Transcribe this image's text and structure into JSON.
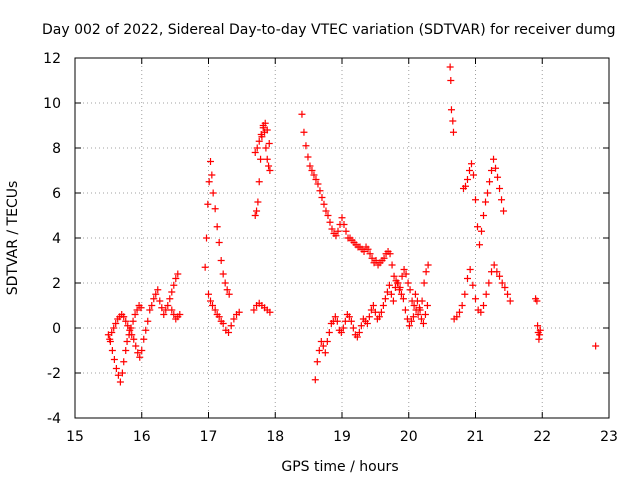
{
  "chart_data": {
    "type": "scatter",
    "title": "Day 002 of 2022, Sidereal Day-to-day VTEC variation (SDTVAR) for receiver dumg",
    "xlabel": "GPS time / hours",
    "ylabel": "SDTVAR / TECUs",
    "xlim": [
      15,
      23
    ],
    "ylim": [
      -4,
      12
    ],
    "xticks": [
      15,
      16,
      17,
      18,
      19,
      20,
      21,
      22,
      23
    ],
    "yticks": [
      -4,
      -2,
      0,
      2,
      4,
      6,
      8,
      10,
      12
    ],
    "grid": true,
    "marker": "plus",
    "series_color": "#ff0000",
    "series": [
      {
        "name": "SDTVAR",
        "x": [
          15.5,
          15.53,
          15.56,
          15.59,
          15.62,
          15.65,
          15.68,
          15.71,
          15.73,
          15.76,
          15.78,
          15.81,
          15.84,
          15.87,
          15.9,
          15.93,
          15.96,
          15.99,
          15.52,
          15.55,
          15.58,
          15.61,
          15.64,
          15.67,
          15.7,
          15.73,
          15.76,
          15.79,
          15.82,
          15.85,
          15.88,
          15.91,
          15.94,
          15.97,
          16.0,
          16.03,
          16.06,
          16.09,
          16.12,
          16.15,
          16.18,
          16.21,
          16.24,
          16.27,
          16.3,
          16.33,
          16.36,
          16.39,
          16.42,
          16.45,
          16.48,
          16.51,
          16.54,
          16.45,
          16.48,
          16.51,
          16.54,
          16.57,
          16.95,
          16.97,
          16.99,
          17.01,
          17.03,
          17.05,
          17.07,
          17.1,
          17.13,
          17.16,
          17.19,
          17.22,
          17.25,
          17.28,
          17.31,
          17.0,
          17.03,
          17.06,
          17.1,
          17.13,
          17.16,
          17.19,
          17.22,
          17.26,
          17.3,
          17.34,
          17.38,
          17.42,
          17.46,
          17.7,
          17.72,
          17.74,
          17.76,
          17.78,
          17.8,
          17.82,
          17.84,
          17.86,
          17.88,
          17.9,
          17.92,
          17.7,
          17.73,
          17.76,
          17.79,
          17.82,
          17.85,
          17.88,
          17.91,
          17.68,
          17.72,
          17.76,
          17.8,
          17.84,
          17.88,
          17.92,
          18.4,
          18.43,
          18.46,
          18.49,
          18.52,
          18.55,
          18.58,
          18.61,
          18.64,
          18.67,
          18.7,
          18.73,
          18.76,
          18.79,
          18.82,
          18.85,
          18.88,
          18.91,
          18.94,
          18.97,
          19.0,
          19.03,
          19.06,
          19.09,
          19.12,
          19.15,
          19.18,
          19.21,
          19.24,
          19.27,
          19.3,
          19.33,
          19.36,
          19.39,
          19.42,
          19.45,
          19.48,
          19.51,
          19.54,
          19.57,
          19.6,
          19.63,
          19.66,
          19.69,
          19.72,
          19.75,
          19.78,
          19.81,
          19.84,
          19.87,
          19.9,
          19.93,
          19.96,
          19.99,
          20.02,
          20.05,
          20.08,
          20.11,
          20.14,
          20.17,
          20.2,
          20.23,
          20.26,
          20.29,
          18.6,
          18.63,
          18.66,
          18.69,
          18.72,
          18.75,
          18.78,
          18.81,
          18.84,
          18.87,
          18.9,
          18.93,
          18.96,
          18.99,
          19.02,
          19.05,
          19.08,
          19.11,
          19.14,
          19.17,
          19.2,
          19.23,
          19.26,
          19.29,
          19.32,
          19.35,
          19.38,
          19.41,
          19.44,
          19.47,
          19.5,
          19.53,
          19.56,
          19.59,
          19.62,
          19.65,
          19.68,
          19.71,
          19.74,
          19.77,
          19.8,
          19.83,
          19.86,
          19.89,
          19.92,
          19.95,
          19.98,
          20.01,
          20.04,
          20.07,
          20.1,
          20.13,
          20.16,
          20.19,
          20.22,
          20.25,
          20.28,
          20.62,
          20.63,
          20.64,
          20.66,
          20.67,
          20.68,
          20.72,
          20.76,
          20.8,
          20.84,
          20.88,
          20.92,
          20.96,
          21.0,
          21.04,
          21.08,
          21.12,
          21.16,
          21.2,
          21.24,
          21.28,
          21.32,
          21.36,
          21.4,
          21.44,
          21.48,
          21.52,
          20.82,
          20.85,
          20.88,
          20.91,
          20.94,
          20.97,
          21.0,
          21.03,
          21.06,
          21.09,
          21.12,
          21.15,
          21.18,
          21.21,
          21.24,
          21.27,
          21.3,
          21.33,
          21.36,
          21.39,
          21.42,
          21.9,
          21.92,
          21.93,
          21.94,
          21.95,
          21.96,
          21.97,
          22.8
        ],
        "y": [
          -0.3,
          -0.6,
          -1.0,
          -1.4,
          -1.8,
          -2.1,
          -2.4,
          -2.0,
          -1.5,
          -1.0,
          -0.6,
          -0.3,
          0.0,
          0.3,
          0.6,
          0.8,
          1.0,
          0.9,
          -0.5,
          -0.2,
          0.0,
          0.2,
          0.4,
          0.5,
          0.6,
          0.5,
          0.3,
          0.1,
          -0.1,
          -0.3,
          -0.5,
          -0.8,
          -1.1,
          -1.3,
          -1.0,
          -0.5,
          -0.1,
          0.3,
          0.8,
          1.0,
          1.3,
          1.5,
          1.7,
          1.2,
          0.9,
          0.6,
          0.8,
          1.0,
          1.3,
          1.6,
          1.9,
          2.2,
          2.4,
          0.8,
          0.6,
          0.4,
          0.5,
          0.6,
          2.7,
          4.0,
          5.5,
          6.5,
          7.4,
          6.8,
          6.0,
          5.3,
          4.5,
          3.8,
          3.0,
          2.4,
          2.0,
          1.7,
          1.5,
          1.5,
          1.2,
          1.0,
          0.8,
          0.6,
          0.5,
          0.3,
          0.2,
          -0.1,
          -0.2,
          0.1,
          0.4,
          0.6,
          0.7,
          5.0,
          5.2,
          5.6,
          6.5,
          7.5,
          8.5,
          9.0,
          8.7,
          8.0,
          7.5,
          7.2,
          7.0,
          7.8,
          8.0,
          8.3,
          8.6,
          8.9,
          9.1,
          8.8,
          8.2,
          0.8,
          1.0,
          1.1,
          1.0,
          0.9,
          0.8,
          0.7,
          9.5,
          8.7,
          8.1,
          7.6,
          7.2,
          7.0,
          6.8,
          6.6,
          6.4,
          6.1,
          5.8,
          5.5,
          5.2,
          5.0,
          4.7,
          4.4,
          4.2,
          4.1,
          4.3,
          4.6,
          4.9,
          4.6,
          4.3,
          4.0,
          4.0,
          3.9,
          3.8,
          3.7,
          3.6,
          3.6,
          3.5,
          3.4,
          3.6,
          3.5,
          3.3,
          3.1,
          2.9,
          3.0,
          2.8,
          2.9,
          3.0,
          3.1,
          3.3,
          3.4,
          3.3,
          2.8,
          2.3,
          2.1,
          2.0,
          1.8,
          2.3,
          2.6,
          2.4,
          2.0,
          1.7,
          1.2,
          1.0,
          0.8,
          0.6,
          0.8,
          1.2,
          2.0,
          2.5,
          2.8,
          -2.3,
          -1.5,
          -1.0,
          -0.6,
          -0.8,
          -1.1,
          -0.6,
          -0.2,
          0.2,
          0.3,
          0.5,
          0.3,
          -0.1,
          -0.2,
          0.0,
          0.3,
          0.6,
          0.5,
          0.3,
          0.0,
          -0.3,
          -0.4,
          -0.2,
          0.1,
          0.4,
          0.3,
          0.2,
          0.5,
          0.8,
          1.0,
          0.7,
          0.4,
          0.5,
          0.7,
          1.0,
          1.3,
          1.6,
          1.9,
          1.5,
          1.2,
          1.8,
          2.0,
          1.7,
          1.5,
          1.3,
          0.8,
          0.4,
          0.1,
          0.3,
          0.5,
          1.5,
          1.2,
          0.9,
          0.4,
          0.2,
          0.6,
          1.0,
          11.6,
          11.0,
          9.7,
          9.2,
          8.7,
          0.4,
          0.5,
          0.7,
          1.0,
          1.5,
          2.2,
          2.6,
          1.9,
          1.3,
          0.8,
          0.7,
          1.0,
          1.5,
          2.0,
          2.5,
          2.8,
          2.5,
          2.3,
          2.0,
          1.8,
          1.5,
          1.2,
          6.2,
          6.3,
          6.6,
          7.0,
          7.3,
          6.8,
          5.7,
          4.5,
          3.7,
          4.3,
          5.0,
          5.6,
          6.0,
          6.5,
          7.0,
          7.5,
          7.1,
          6.7,
          6.2,
          5.7,
          5.2,
          1.3,
          1.2,
          0.1,
          -0.2,
          -0.5,
          -0.3,
          -0.1,
          -0.8
        ]
      }
    ]
  }
}
